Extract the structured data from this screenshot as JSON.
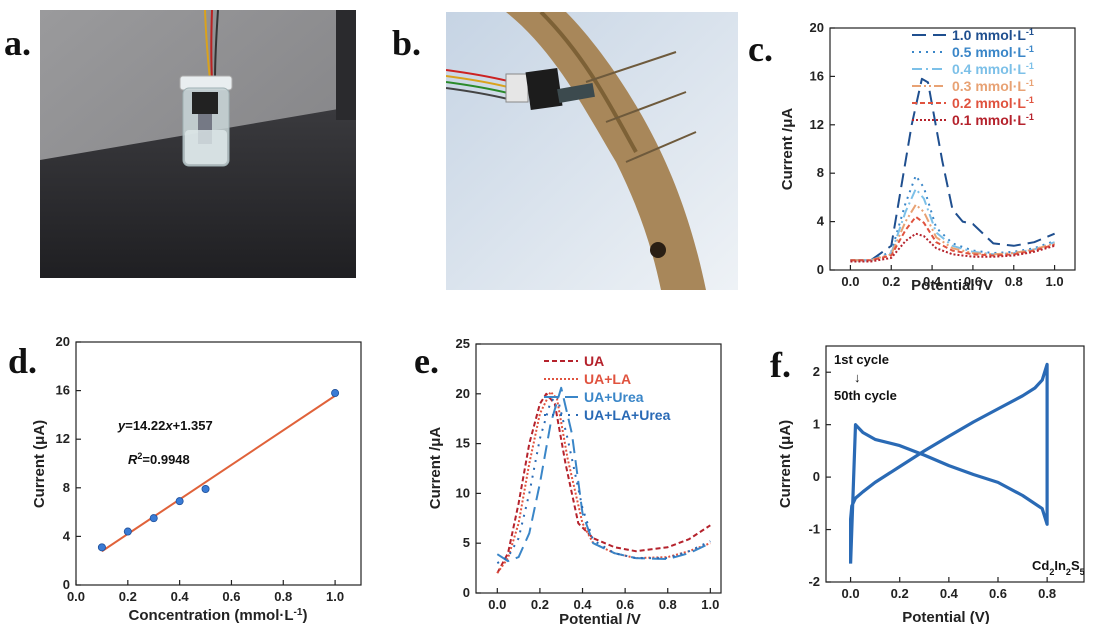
{
  "panels": {
    "a": {
      "letter": "a."
    },
    "b": {
      "letter": "b."
    },
    "c": {
      "letter": "c."
    },
    "d": {
      "letter": "d."
    },
    "e": {
      "letter": "e."
    },
    "f": {
      "letter": "f."
    }
  },
  "colors": {
    "dark_blue": "#1f4f8f",
    "mid_blue": "#3a86c8",
    "light_blue": "#7cc0e8",
    "orange": "#e8a274",
    "red": "#e0533f",
    "dark_red": "#b5222c",
    "fit_line": "#e0623a",
    "cv_blue": "#2a6ab5"
  },
  "annotations": {
    "d_equation_y": "y",
    "d_equation_rest": "=14.22",
    "d_equation_x": "x",
    "d_equation_tail": "+1.357",
    "d_r2_r": "R",
    "d_r2_sup": "2",
    "d_r2_val": "=0.9948",
    "f_first": "1st cycle",
    "f_last": "50th cycle",
    "f_arrow": "↓",
    "f_material_a": "Cd",
    "f_material_a_sub": "2",
    "f_material_b": "In",
    "f_material_b_sub": "2",
    "f_material_c": "S",
    "f_material_c_sub": "5"
  },
  "chart_data": [
    {
      "id": "c",
      "type": "line",
      "xlabel": "Potential /V",
      "ylabel": "Current /μA",
      "xlim": [
        -0.1,
        1.1
      ],
      "ylim": [
        0,
        20
      ],
      "xticks": [
        "0.0",
        "0.2",
        "0.4",
        "0.6",
        "0.8",
        "1.0"
      ],
      "yticks": [
        "0",
        "4",
        "8",
        "12",
        "16",
        "20"
      ],
      "legend_position": "top-right",
      "series": [
        {
          "name": "1.0 mmol·L",
          "sup": "-1",
          "color": "#1f4f8f",
          "dash": "14,7",
          "x": [
            0,
            0.1,
            0.2,
            0.3,
            0.35,
            0.38,
            0.45,
            0.5,
            0.55,
            0.6,
            0.7,
            0.8,
            0.9,
            1.0
          ],
          "y": [
            0.8,
            0.8,
            2.0,
            12.0,
            15.8,
            15.5,
            9.0,
            5.0,
            4.0,
            3.8,
            2.2,
            2.0,
            2.3,
            3.0
          ]
        },
        {
          "name": "0.5 mmol·L",
          "sup": "-1",
          "color": "#3a86c8",
          "dash": "2,5",
          "x": [
            0,
            0.1,
            0.2,
            0.27,
            0.32,
            0.36,
            0.42,
            0.5,
            0.6,
            0.7,
            0.8,
            0.9,
            1.0
          ],
          "y": [
            0.8,
            0.8,
            1.5,
            5.5,
            7.8,
            6.8,
            3.5,
            2.2,
            1.6,
            1.4,
            1.5,
            1.8,
            2.4
          ]
        },
        {
          "name": "0.4 mmol·L",
          "sup": "-1",
          "color": "#7cc0e8",
          "dash": "10,4,2,4",
          "x": [
            0,
            0.1,
            0.2,
            0.27,
            0.32,
            0.36,
            0.42,
            0.5,
            0.6,
            0.7,
            0.8,
            0.9,
            1.0
          ],
          "y": [
            0.8,
            0.8,
            1.4,
            4.8,
            6.7,
            5.9,
            3.1,
            2.0,
            1.5,
            1.3,
            1.4,
            1.7,
            2.3
          ]
        },
        {
          "name": "0.3 mmol·L",
          "sup": "-1",
          "color": "#e8a274",
          "dash": "9,3,2,3,2,3",
          "x": [
            0,
            0.1,
            0.2,
            0.27,
            0.32,
            0.36,
            0.42,
            0.5,
            0.6,
            0.7,
            0.8,
            0.9,
            1.0
          ],
          "y": [
            0.8,
            0.8,
            1.3,
            4.0,
            5.4,
            4.8,
            2.7,
            1.8,
            1.4,
            1.3,
            1.4,
            1.7,
            2.2
          ]
        },
        {
          "name": "0.2 mmol·L",
          "sup": "-1",
          "color": "#e0533f",
          "dash": "5,3",
          "x": [
            0,
            0.1,
            0.2,
            0.27,
            0.32,
            0.36,
            0.42,
            0.5,
            0.6,
            0.7,
            0.8,
            0.9,
            1.0
          ],
          "y": [
            0.8,
            0.8,
            1.2,
            3.3,
            4.4,
            3.9,
            2.3,
            1.6,
            1.3,
            1.2,
            1.3,
            1.6,
            2.1
          ]
        },
        {
          "name": "0.1 mmol·L",
          "sup": "-1",
          "color": "#b5222c",
          "dash": "2,2",
          "x": [
            0,
            0.1,
            0.2,
            0.27,
            0.32,
            0.36,
            0.42,
            0.5,
            0.6,
            0.7,
            0.8,
            0.9,
            1.0
          ],
          "y": [
            0.7,
            0.7,
            1.0,
            2.4,
            3.0,
            2.8,
            1.8,
            1.3,
            1.1,
            1.1,
            1.2,
            1.5,
            2.0
          ]
        }
      ]
    },
    {
      "id": "d",
      "type": "scatter",
      "xlabel": "Concentration (mmol·L",
      "xlabel_sup": "-1",
      "xlabel_tail": ")",
      "ylabel": "Current (μA)",
      "xlim": [
        0.0,
        1.1
      ],
      "ylim": [
        0,
        20
      ],
      "xticks": [
        "0.0",
        "0.2",
        "0.4",
        "0.6",
        "0.8",
        "1.0"
      ],
      "yticks": [
        "0",
        "4",
        "8",
        "12",
        "16",
        "20"
      ],
      "points": {
        "x": [
          0.1,
          0.2,
          0.3,
          0.4,
          0.5,
          1.0
        ],
        "y": [
          3.1,
          4.4,
          5.5,
          6.9,
          7.9,
          15.8
        ]
      },
      "fit": {
        "slope": 14.22,
        "intercept": 1.357,
        "x": [
          0.1,
          1.0
        ]
      }
    },
    {
      "id": "e",
      "type": "line",
      "xlabel": "Potential /V",
      "ylabel": "Current /μA",
      "xlim": [
        -0.1,
        1.05
      ],
      "ylim": [
        0,
        25
      ],
      "xticks": [
        "0.0",
        "0.2",
        "0.4",
        "0.6",
        "0.8",
        "1.0"
      ],
      "yticks": [
        "0",
        "5",
        "10",
        "15",
        "20",
        "25"
      ],
      "legend_position": "top-right",
      "series": [
        {
          "name": "UA",
          "color": "#b5222c",
          "dash": "5,3",
          "x": [
            0,
            0.05,
            0.1,
            0.15,
            0.2,
            0.23,
            0.27,
            0.32,
            0.38,
            0.45,
            0.55,
            0.65,
            0.8,
            0.9,
            1.0
          ],
          "y": [
            2.0,
            4.0,
            9.0,
            15.0,
            19.0,
            20.0,
            19.0,
            13.0,
            7.0,
            5.5,
            4.6,
            4.2,
            4.6,
            5.4,
            6.8
          ]
        },
        {
          "name": "UA+LA",
          "color": "#e0533f",
          "dash": "2,2",
          "x": [
            0,
            0.05,
            0.1,
            0.15,
            0.2,
            0.25,
            0.28,
            0.33,
            0.4,
            0.45,
            0.55,
            0.65,
            0.8,
            0.9,
            1.0
          ],
          "y": [
            2.0,
            3.5,
            7.0,
            13.0,
            18.0,
            20.2,
            19.5,
            13.5,
            7.0,
            5.0,
            4.0,
            3.5,
            3.6,
            4.2,
            5.0
          ]
        },
        {
          "name": "UA+Urea",
          "color": "#3a86c8",
          "dash": "14,7",
          "x": [
            0,
            0.05,
            0.1,
            0.15,
            0.2,
            0.25,
            0.3,
            0.35,
            0.4,
            0.45,
            0.55,
            0.65,
            0.8,
            0.9,
            1.0
          ],
          "y": [
            3.9,
            3.2,
            3.6,
            6.0,
            11.0,
            17.0,
            20.6,
            16.0,
            8.0,
            5.0,
            4.0,
            3.5,
            3.4,
            4.0,
            5.0
          ]
        },
        {
          "name": "UA+LA+Urea",
          "color": "#2a6ab5",
          "dash": "2,6",
          "x": [
            0,
            0.05,
            0.1,
            0.15,
            0.2,
            0.25,
            0.28,
            0.33,
            0.4,
            0.45,
            0.55,
            0.65,
            0.8,
            0.9,
            1.0
          ],
          "y": [
            3.0,
            3.6,
            5.5,
            10.0,
            15.5,
            19.2,
            19.8,
            15.5,
            8.5,
            5.3,
            4.0,
            3.5,
            3.5,
            4.2,
            5.2
          ]
        }
      ]
    },
    {
      "id": "f",
      "type": "line",
      "xlabel": "Potential (V)",
      "ylabel": "Current (μA)",
      "xlim": [
        -0.1,
        0.95
      ],
      "ylim": [
        -2,
        2.5
      ],
      "xticks": [
        "0.0",
        "0.2",
        "0.4",
        "0.6",
        "0.8"
      ],
      "yticks": [
        "-2",
        "-1",
        "0",
        "1",
        "2"
      ],
      "series": [
        {
          "name": "",
          "color": "#2a6ab5",
          "x": [
            0.0,
            0.0,
            0.005,
            0.02,
            0.05,
            0.1,
            0.2,
            0.3,
            0.4,
            0.5,
            0.6,
            0.7,
            0.75,
            0.78,
            0.8,
            0.8,
            0.78,
            0.7,
            0.6,
            0.5,
            0.4,
            0.3,
            0.2,
            0.1,
            0.05,
            0.02,
            0.0
          ],
          "y": [
            -1.65,
            -0.8,
            -0.55,
            -0.4,
            -0.28,
            -0.1,
            0.2,
            0.5,
            0.78,
            1.05,
            1.3,
            1.55,
            1.7,
            1.85,
            2.15,
            -0.9,
            -0.6,
            -0.35,
            -0.1,
            0.05,
            0.22,
            0.42,
            0.6,
            0.72,
            0.85,
            1.0,
            -1.65
          ]
        }
      ]
    }
  ]
}
